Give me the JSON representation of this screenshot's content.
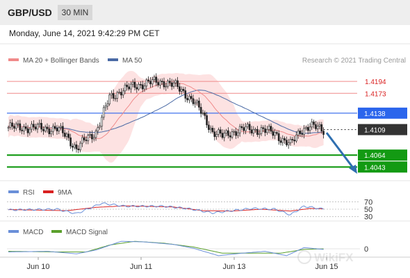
{
  "header": {
    "symbol": "GBP/USD",
    "timeframe": "30 MIN"
  },
  "datetime": "Monday, June 14, 2021 9:42:29 PM CET",
  "legend": {
    "ma20": "MA 20 + Bollinger Bands",
    "ma50": "MA 50",
    "credit": "Research © 2021 Trading Central",
    "rsi": "RSI",
    "rsi_ma": "9MA",
    "macd": "MACD",
    "macd_signal": "MACD Signal"
  },
  "colors": {
    "ma20": "#f08a8a",
    "ma50": "#4a6aa5",
    "band": "#fde2e2",
    "candle": "#222222",
    "pivot": "#2b65ec",
    "support": "#139a13",
    "resistance": "#f08a8a",
    "last": "#333333",
    "rsi": "#6a8fd8",
    "rsi_ma": "#d92020",
    "macd_signal": "#5aa02c",
    "arrow": "#2f6fb0"
  },
  "watermark": "WikiFX",
  "chart_data": {
    "type": "candlestick",
    "ylim": [
      1.4025,
      1.4215
    ],
    "levels": [
      {
        "label": "1.4194",
        "value": 1.4194,
        "kind": "resistance"
      },
      {
        "label": "1.4173",
        "value": 1.4173,
        "kind": "resistance"
      },
      {
        "label": "1.4138",
        "value": 1.4138,
        "kind": "pivot"
      },
      {
        "label": "1.4109",
        "value": 1.4109,
        "kind": "last"
      },
      {
        "label": "1.4064",
        "value": 1.4064,
        "kind": "support"
      },
      {
        "label": "1.4043",
        "value": 1.4043,
        "kind": "support"
      }
    ],
    "x_ticks": [
      "Jun 10",
      "Jun 11",
      "Jun 13",
      "Jun 15"
    ],
    "rsi_levels": [
      "70",
      "50",
      "30"
    ],
    "macd_levels": [
      "0"
    ],
    "anchors": [
      [
        0,
        1.4113
      ],
      [
        15,
        1.4112
      ],
      [
        25,
        1.411
      ],
      [
        30,
        1.4098
      ],
      [
        35,
        1.4075
      ],
      [
        40,
        1.4092
      ],
      [
        45,
        1.4105
      ],
      [
        48,
        1.413
      ],
      [
        52,
        1.4165
      ],
      [
        58,
        1.4178
      ],
      [
        65,
        1.4186
      ],
      [
        72,
        1.4192
      ],
      [
        80,
        1.4193
      ],
      [
        85,
        1.4188
      ],
      [
        90,
        1.4175
      ],
      [
        95,
        1.416
      ],
      [
        100,
        1.4135
      ],
      [
        105,
        1.4105
      ],
      [
        110,
        1.4097
      ],
      [
        115,
        1.4105
      ],
      [
        122,
        1.411
      ],
      [
        130,
        1.4108
      ],
      [
        137,
        1.4103
      ],
      [
        142,
        1.4088
      ],
      [
        145,
        1.4082
      ],
      [
        150,
        1.4108
      ],
      [
        155,
        1.4114
      ],
      [
        160,
        1.4112
      ],
      [
        162,
        1.4109
      ]
    ],
    "rsi_anchors": [
      [
        0,
        48
      ],
      [
        25,
        50
      ],
      [
        35,
        38
      ],
      [
        48,
        66
      ],
      [
        60,
        58
      ],
      [
        80,
        58
      ],
      [
        92,
        52
      ],
      [
        105,
        40
      ],
      [
        115,
        46
      ],
      [
        125,
        52
      ],
      [
        137,
        50
      ],
      [
        145,
        35
      ],
      [
        152,
        58
      ],
      [
        162,
        50
      ]
    ],
    "rsi_ma_anchors": [
      [
        0,
        49
      ],
      [
        30,
        46
      ],
      [
        45,
        55
      ],
      [
        60,
        59
      ],
      [
        85,
        56
      ],
      [
        100,
        46
      ],
      [
        115,
        45
      ],
      [
        130,
        50
      ],
      [
        145,
        45
      ],
      [
        155,
        52
      ],
      [
        162,
        51
      ]
    ],
    "macd_anchors": [
      [
        0,
        -5
      ],
      [
        20,
        -4
      ],
      [
        35,
        -8
      ],
      [
        45,
        -2
      ],
      [
        58,
        12
      ],
      [
        70,
        11
      ],
      [
        85,
        7
      ],
      [
        95,
        1
      ],
      [
        108,
        -11
      ],
      [
        120,
        -7
      ],
      [
        132,
        -4
      ],
      [
        143,
        -11
      ],
      [
        152,
        2
      ],
      [
        162,
        -1
      ]
    ],
    "macd_signal_anchors": [
      [
        0,
        -4
      ],
      [
        25,
        -5
      ],
      [
        40,
        -5
      ],
      [
        52,
        6
      ],
      [
        65,
        12
      ],
      [
        80,
        9
      ],
      [
        95,
        3
      ],
      [
        110,
        -7
      ],
      [
        125,
        -7
      ],
      [
        140,
        -7
      ],
      [
        152,
        -1
      ],
      [
        162,
        0
      ]
    ]
  }
}
